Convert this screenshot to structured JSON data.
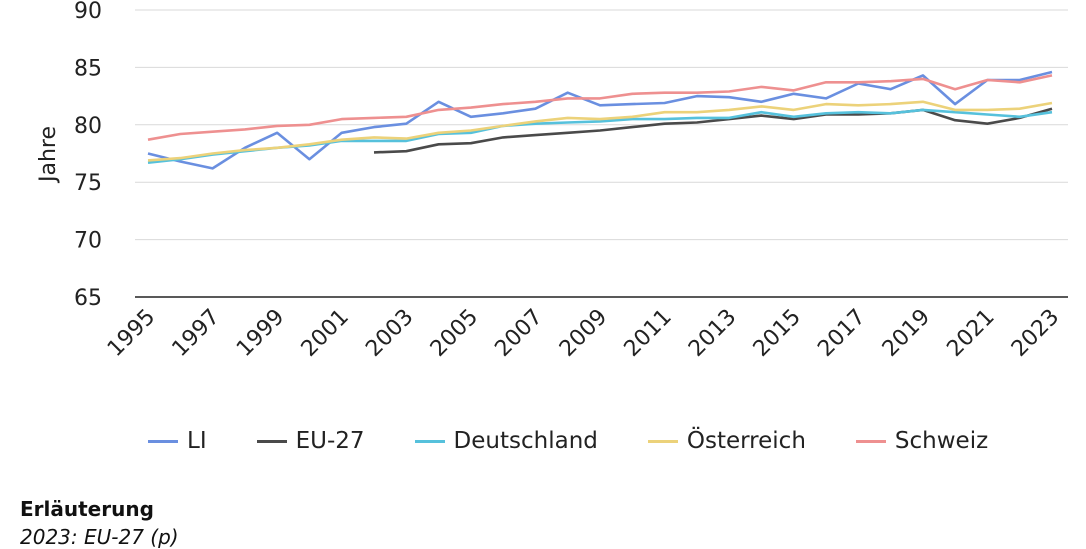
{
  "chart_data": {
    "type": "line",
    "title": "",
    "xlabel": "",
    "ylabel": "Jahre",
    "ylim": [
      65,
      90
    ],
    "yticks": [
      "65",
      "70",
      "75",
      "80",
      "85",
      "90"
    ],
    "x": [
      1995,
      1996,
      1997,
      1998,
      1999,
      2000,
      2001,
      2002,
      2003,
      2004,
      2005,
      2006,
      2007,
      2008,
      2009,
      2010,
      2011,
      2012,
      2013,
      2014,
      2015,
      2016,
      2017,
      2018,
      2019,
      2020,
      2021,
      2022,
      2023
    ],
    "xtick_labels": [
      "1995",
      "1997",
      "1999",
      "2001",
      "2003",
      "2005",
      "2007",
      "2009",
      "2011",
      "2013",
      "2015",
      "2017",
      "2019",
      "2021",
      "2023"
    ],
    "grid": true,
    "legend_position": "bottom",
    "series": [
      {
        "name": "LI",
        "color": "#6a8fe0",
        "values": [
          77.5,
          76.8,
          76.2,
          78.0,
          79.3,
          77.0,
          79.3,
          79.8,
          80.1,
          82.0,
          80.7,
          81.0,
          81.4,
          82.8,
          81.7,
          81.8,
          81.9,
          82.5,
          82.4,
          82.0,
          82.7,
          82.3,
          83.6,
          83.1,
          84.3,
          81.8,
          83.9,
          83.9,
          84.6
        ]
      },
      {
        "name": "EU-27",
        "color": "#4a4a4a",
        "values": [
          null,
          null,
          null,
          null,
          null,
          null,
          null,
          77.6,
          77.7,
          78.3,
          78.4,
          78.9,
          79.1,
          79.3,
          79.5,
          79.8,
          80.1,
          80.2,
          80.5,
          80.8,
          80.5,
          80.9,
          80.9,
          81.0,
          81.3,
          80.4,
          80.1,
          80.6,
          81.4
        ]
      },
      {
        "name": "Deutschland",
        "color": "#56c1dc",
        "values": [
          76.7,
          77.0,
          77.4,
          77.7,
          78.0,
          78.2,
          78.6,
          78.6,
          78.6,
          79.2,
          79.3,
          79.9,
          80.1,
          80.2,
          80.3,
          80.5,
          80.5,
          80.6,
          80.6,
          81.1,
          80.7,
          81.0,
          81.1,
          81.0,
          81.3,
          81.1,
          80.9,
          80.7,
          81.1
        ]
      },
      {
        "name": "Österreich",
        "color": "#ecd27a",
        "values": [
          76.9,
          77.1,
          77.5,
          77.8,
          78.0,
          78.3,
          78.7,
          78.9,
          78.8,
          79.3,
          79.5,
          79.9,
          80.3,
          80.6,
          80.5,
          80.7,
          81.1,
          81.1,
          81.3,
          81.6,
          81.3,
          81.8,
          81.7,
          81.8,
          82.0,
          81.3,
          81.3,
          81.4,
          81.9
        ]
      },
      {
        "name": "Schweiz",
        "color": "#ee9090",
        "values": [
          78.7,
          79.2,
          79.4,
          79.6,
          79.9,
          80.0,
          80.5,
          80.6,
          80.7,
          81.3,
          81.5,
          81.8,
          82.0,
          82.3,
          82.3,
          82.7,
          82.8,
          82.8,
          82.9,
          83.3,
          83.0,
          83.7,
          83.7,
          83.8,
          84.0,
          83.1,
          83.9,
          83.7,
          84.3
        ]
      }
    ]
  },
  "note": {
    "title": "Erläuterung",
    "text": "2023: EU-27 (p)"
  }
}
